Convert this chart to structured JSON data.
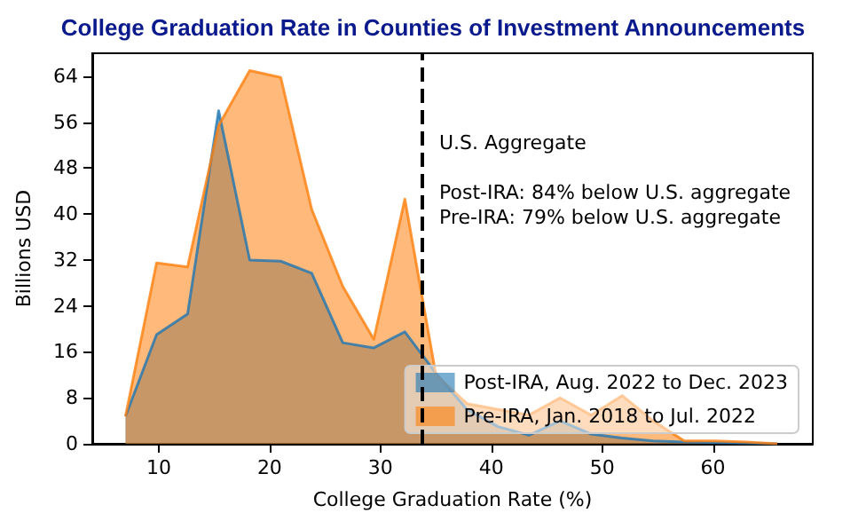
{
  "chart_data": {
    "type": "area",
    "title": "College Graduation Rate in Counties of Investment Announcements",
    "xlabel": "College Graduation Rate (%)",
    "ylabel": "Billions USD",
    "x": [
      7,
      9.8,
      12.6,
      15.4,
      18.2,
      21,
      23.8,
      26.6,
      29.4,
      32.2,
      35,
      37.8,
      40.6,
      43.4,
      46.2,
      49,
      51.8,
      54.6,
      57.4,
      60.2,
      63,
      65.8
    ],
    "series": [
      {
        "name": "Post-IRA, Aug. 2022 to Dec. 2023",
        "color": "#1f77b4",
        "values": [
          4.8,
          19,
          22.6,
          58,
          32,
          31.8,
          29.7,
          17.6,
          16.7,
          19.5,
          12.3,
          6,
          3,
          1.5,
          4,
          1.7,
          1,
          0.5,
          0.3,
          0.2,
          0.1,
          0
        ]
      },
      {
        "name": "Pre-IRA, Jan. 2018 to Jul. 2022",
        "color": "#ff7f0e",
        "values": [
          4.8,
          31.5,
          30.8,
          55.4,
          65,
          63.8,
          40.8,
          27.4,
          18.2,
          42.6,
          12,
          7,
          6,
          5,
          8,
          5,
          8.4,
          4,
          0.5,
          0.5,
          0.3,
          0
        ]
      }
    ],
    "xlim": [
      4,
      69
    ],
    "xticks": [
      10,
      20,
      30,
      40,
      50,
      60
    ],
    "ylim": [
      0,
      68
    ],
    "yticks": [
      0,
      8,
      16,
      24,
      32,
      40,
      48,
      56,
      64
    ],
    "ref_lines": [
      {
        "axis": "x",
        "value": 33.7,
        "label": "U.S. Aggregate",
        "color": "#000000",
        "line_style": "dashed"
      }
    ],
    "annotations": [
      "Post-IRA: 84% below U.S. aggregate",
      "Pre-IRA: 79% below U.S. aggregate"
    ],
    "grid": false,
    "legend": "bottom right",
    "marker": "none",
    "line_style": "solid"
  }
}
